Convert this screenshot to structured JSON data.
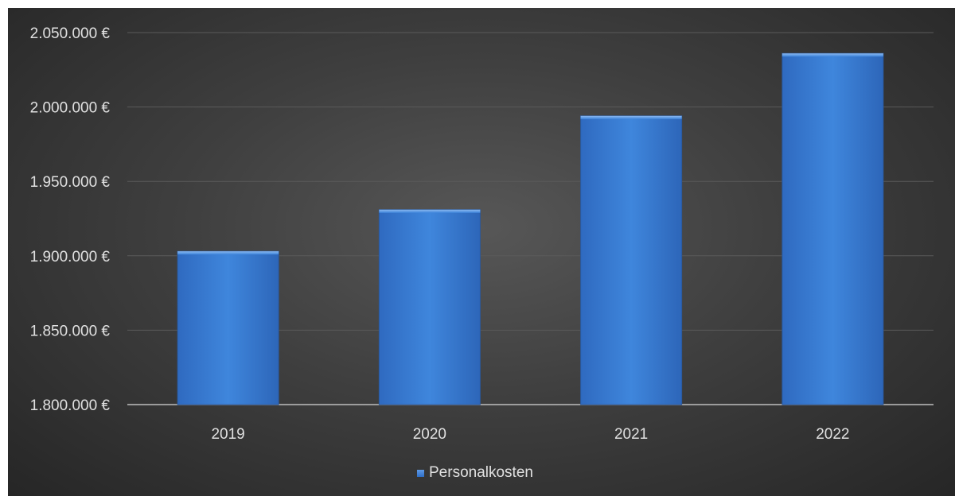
{
  "chart_data": {
    "type": "bar",
    "categories": [
      "2019",
      "2020",
      "2021",
      "2022"
    ],
    "series": [
      {
        "name": "Personalkosten",
        "values": [
          1903000,
          1931000,
          1994000,
          2036000
        ]
      }
    ],
    "ylim": [
      1800000,
      2050000
    ],
    "ytick_labels": [
      "1.800.000 €",
      "1.850.000 €",
      "1.900.000 €",
      "1.950.000 €",
      "2.000.000 €",
      "2.050.000 €"
    ],
    "ytick_values": [
      1800000,
      1850000,
      1900000,
      1950000,
      2000000,
      2050000
    ],
    "grid": true,
    "legend_position": "bottom",
    "colors": {
      "bar": "#3b7fd6",
      "bar_top": "#5f9ae8",
      "grid": "#5a5a5a",
      "axis": "#bdbdbd",
      "text": "#e0e0e0"
    }
  }
}
